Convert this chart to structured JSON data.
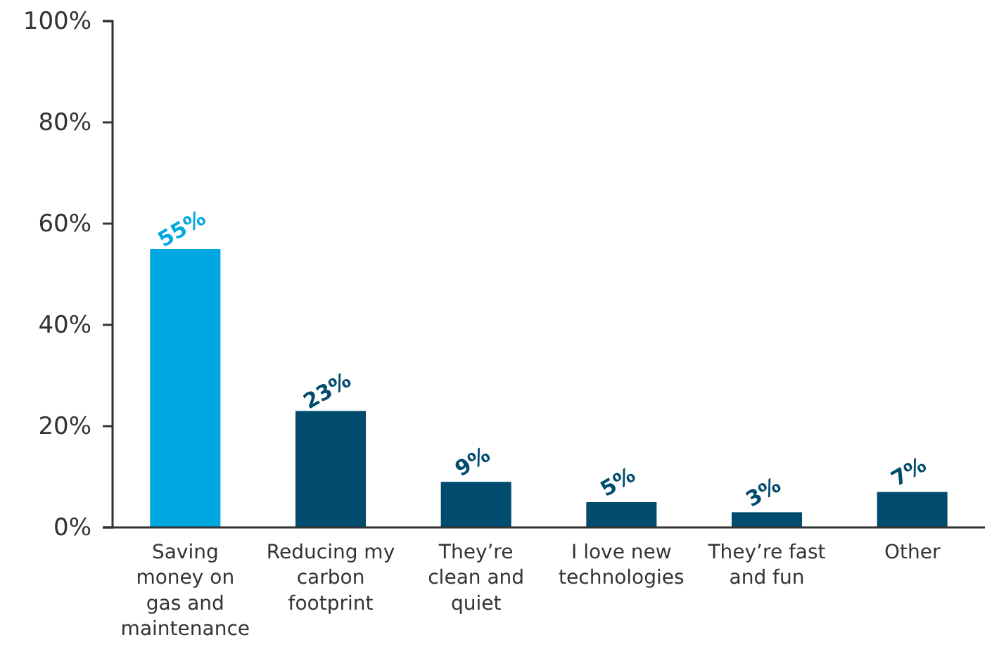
{
  "chart_data": {
    "type": "bar",
    "categories": [
      "Saving money on gas and maintenance",
      "Reducing my carbon footprint",
      "They’re clean and quiet",
      "I love new technologies",
      "They’re fast and fun",
      "Other"
    ],
    "values": [
      55,
      23,
      9,
      5,
      3,
      7
    ],
    "colors": [
      "#00a8e1",
      "#004b6e",
      "#004b6e",
      "#004b6e",
      "#004b6e",
      "#004b6e"
    ],
    "value_labels": [
      "55%",
      "23%",
      "9%",
      "5%",
      "3%",
      "7%"
    ],
    "ylim": [
      0,
      100
    ],
    "yticks": [
      {
        "value": 0,
        "label": "0%"
      },
      {
        "value": 20,
        "label": "20%"
      },
      {
        "value": 40,
        "label": "40%"
      },
      {
        "value": 60,
        "label": "60%"
      },
      {
        "value": 80,
        "label": "80%"
      },
      {
        "value": 100,
        "label": "100%"
      }
    ],
    "grid": false
  }
}
